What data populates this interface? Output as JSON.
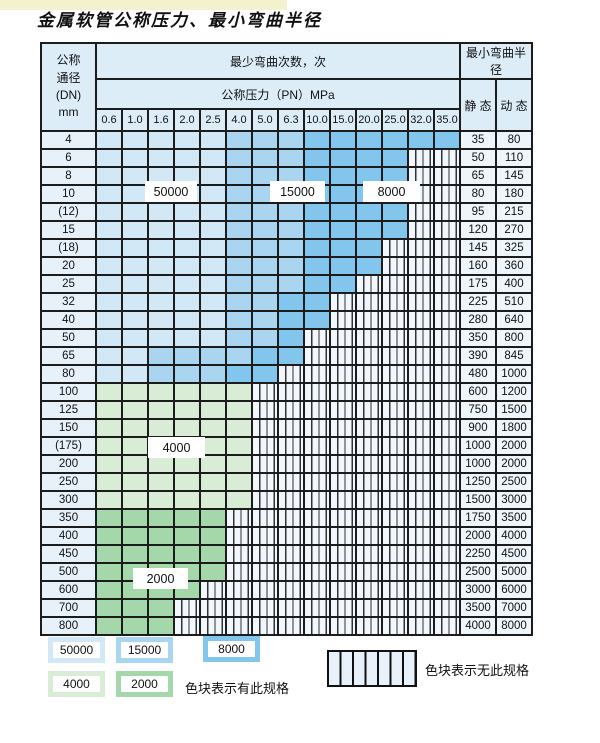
{
  "page": {
    "title": "金属软管公称压力、最小弯曲半径"
  },
  "table": {
    "corner": {
      "line1": "公称",
      "line2": "通径",
      "line3": "(DN)",
      "line4": "mm"
    },
    "bend_header": "最少弯曲次数，次",
    "radius_header": "最小弯曲半径",
    "pressure_header": "公称压力（PN）MPa",
    "static_label": "静 态",
    "dynamic_label": "动 态",
    "pressures": [
      "0.6",
      "1.0",
      "1.6",
      "2.0",
      "2.5",
      "4.0",
      "5.0",
      "6.3",
      "10.0",
      "15.0",
      "20.0",
      "25.0",
      "32.0",
      "35.0"
    ],
    "rows": [
      {
        "dn": "4",
        "static": "35",
        "dynamic": "80",
        "cells": [
          "50000",
          "50000",
          "50000",
          "50000",
          "50000",
          "15000",
          "15000",
          "15000",
          "8000",
          "8000",
          "8000",
          "8000",
          "8000",
          "8000"
        ]
      },
      {
        "dn": "6",
        "static": "50",
        "dynamic": "110",
        "cells": [
          "50000",
          "50000",
          "50000",
          "50000",
          "50000",
          "15000",
          "15000",
          "15000",
          "8000",
          "8000",
          "8000",
          "8000",
          "none",
          "none"
        ]
      },
      {
        "dn": "8",
        "static": "65",
        "dynamic": "145",
        "cells": [
          "50000",
          "50000",
          "50000",
          "50000",
          "50000",
          "15000",
          "15000",
          "15000",
          "8000",
          "8000",
          "8000",
          "8000",
          "none",
          "none"
        ]
      },
      {
        "dn": "10",
        "static": "80",
        "dynamic": "180",
        "cells": [
          "50000",
          "50000",
          "50000",
          "50000",
          "50000",
          "15000",
          "15000",
          "15000",
          "8000",
          "8000",
          "8000",
          "8000",
          "none",
          "none"
        ]
      },
      {
        "dn": "(12)",
        "static": "95",
        "dynamic": "215",
        "cells": [
          "50000",
          "50000",
          "50000",
          "50000",
          "50000",
          "15000",
          "15000",
          "15000",
          "8000",
          "8000",
          "8000",
          "8000",
          "none",
          "none"
        ]
      },
      {
        "dn": "15",
        "static": "120",
        "dynamic": "270",
        "cells": [
          "50000",
          "50000",
          "50000",
          "50000",
          "50000",
          "15000",
          "15000",
          "15000",
          "8000",
          "8000",
          "8000",
          "8000",
          "none",
          "none"
        ]
      },
      {
        "dn": "(18)",
        "static": "145",
        "dynamic": "325",
        "cells": [
          "50000",
          "50000",
          "50000",
          "50000",
          "50000",
          "15000",
          "15000",
          "15000",
          "8000",
          "8000",
          "8000",
          "none",
          "none",
          "none"
        ]
      },
      {
        "dn": "20",
        "static": "160",
        "dynamic": "360",
        "cells": [
          "50000",
          "50000",
          "50000",
          "50000",
          "50000",
          "15000",
          "15000",
          "15000",
          "8000",
          "8000",
          "8000",
          "none",
          "none",
          "none"
        ]
      },
      {
        "dn": "25",
        "static": "175",
        "dynamic": "400",
        "cells": [
          "50000",
          "50000",
          "50000",
          "50000",
          "50000",
          "15000",
          "15000",
          "15000",
          "8000",
          "8000",
          "none",
          "none",
          "none",
          "none"
        ]
      },
      {
        "dn": "32",
        "static": "225",
        "dynamic": "510",
        "cells": [
          "50000",
          "50000",
          "50000",
          "50000",
          "50000",
          "15000",
          "15000",
          "8000",
          "8000",
          "none",
          "none",
          "none",
          "none",
          "none"
        ]
      },
      {
        "dn": "40",
        "static": "280",
        "dynamic": "640",
        "cells": [
          "50000",
          "50000",
          "50000",
          "50000",
          "50000",
          "15000",
          "15000",
          "8000",
          "8000",
          "none",
          "none",
          "none",
          "none",
          "none"
        ]
      },
      {
        "dn": "50",
        "static": "350",
        "dynamic": "800",
        "cells": [
          "50000",
          "50000",
          "50000",
          "50000",
          "50000",
          "15000",
          "15000",
          "8000",
          "none",
          "none",
          "none",
          "none",
          "none",
          "none"
        ]
      },
      {
        "dn": "65",
        "static": "390",
        "dynamic": "845",
        "cells": [
          "50000",
          "50000",
          "15000",
          "15000",
          "15000",
          "15000",
          "8000",
          "8000",
          "none",
          "none",
          "none",
          "none",
          "none",
          "none"
        ]
      },
      {
        "dn": "80",
        "static": "480",
        "dynamic": "1000",
        "cells": [
          "50000",
          "50000",
          "15000",
          "15000",
          "15000",
          "8000",
          "8000",
          "none",
          "none",
          "none",
          "none",
          "none",
          "none",
          "none"
        ]
      },
      {
        "dn": "100",
        "static": "600",
        "dynamic": "1200",
        "cells": [
          "4000",
          "4000",
          "4000",
          "4000",
          "4000",
          "4000",
          "none",
          "none",
          "none",
          "none",
          "none",
          "none",
          "none",
          "none"
        ]
      },
      {
        "dn": "125",
        "static": "750",
        "dynamic": "1500",
        "cells": [
          "4000",
          "4000",
          "4000",
          "4000",
          "4000",
          "4000",
          "none",
          "none",
          "none",
          "none",
          "none",
          "none",
          "none",
          "none"
        ]
      },
      {
        "dn": "150",
        "static": "900",
        "dynamic": "1800",
        "cells": [
          "4000",
          "4000",
          "4000",
          "4000",
          "4000",
          "4000",
          "none",
          "none",
          "none",
          "none",
          "none",
          "none",
          "none",
          "none"
        ]
      },
      {
        "dn": "(175)",
        "static": "1000",
        "dynamic": "2000",
        "cells": [
          "4000",
          "4000",
          "4000",
          "4000",
          "4000",
          "4000",
          "none",
          "none",
          "none",
          "none",
          "none",
          "none",
          "none",
          "none"
        ]
      },
      {
        "dn": "200",
        "static": "1000",
        "dynamic": "2000",
        "cells": [
          "4000",
          "4000",
          "4000",
          "4000",
          "4000",
          "4000",
          "none",
          "none",
          "none",
          "none",
          "none",
          "none",
          "none",
          "none"
        ]
      },
      {
        "dn": "250",
        "static": "1250",
        "dynamic": "2500",
        "cells": [
          "4000",
          "4000",
          "4000",
          "4000",
          "4000",
          "4000",
          "none",
          "none",
          "none",
          "none",
          "none",
          "none",
          "none",
          "none"
        ]
      },
      {
        "dn": "300",
        "static": "1500",
        "dynamic": "3000",
        "cells": [
          "4000",
          "4000",
          "4000",
          "4000",
          "4000",
          "4000",
          "none",
          "none",
          "none",
          "none",
          "none",
          "none",
          "none",
          "none"
        ]
      },
      {
        "dn": "350",
        "static": "1750",
        "dynamic": "3500",
        "cells": [
          "2000",
          "2000",
          "2000",
          "2000",
          "2000",
          "none",
          "none",
          "none",
          "none",
          "none",
          "none",
          "none",
          "none",
          "none"
        ]
      },
      {
        "dn": "400",
        "static": "2000",
        "dynamic": "4000",
        "cells": [
          "2000",
          "2000",
          "2000",
          "2000",
          "2000",
          "none",
          "none",
          "none",
          "none",
          "none",
          "none",
          "none",
          "none",
          "none"
        ]
      },
      {
        "dn": "450",
        "static": "2250",
        "dynamic": "4500",
        "cells": [
          "2000",
          "2000",
          "2000",
          "2000",
          "2000",
          "none",
          "none",
          "none",
          "none",
          "none",
          "none",
          "none",
          "none",
          "none"
        ]
      },
      {
        "dn": "500",
        "static": "2500",
        "dynamic": "5000",
        "cells": [
          "2000",
          "2000",
          "2000",
          "2000",
          "2000",
          "none",
          "none",
          "none",
          "none",
          "none",
          "none",
          "none",
          "none",
          "none"
        ]
      },
      {
        "dn": "600",
        "static": "3000",
        "dynamic": "6000",
        "cells": [
          "2000",
          "2000",
          "2000",
          "2000",
          "none",
          "none",
          "none",
          "none",
          "none",
          "none",
          "none",
          "none",
          "none",
          "none"
        ]
      },
      {
        "dn": "700",
        "static": "3500",
        "dynamic": "7000",
        "cells": [
          "2000",
          "2000",
          "2000",
          "none",
          "none",
          "none",
          "none",
          "none",
          "none",
          "none",
          "none",
          "none",
          "none",
          "none"
        ]
      },
      {
        "dn": "800",
        "static": "4000",
        "dynamic": "8000",
        "cells": [
          "2000",
          "2000",
          "2000",
          "none",
          "none",
          "none",
          "none",
          "none",
          "none",
          "none",
          "none",
          "none",
          "none",
          "none"
        ]
      }
    ]
  },
  "overlays": [
    {
      "text": "50000",
      "zone": "50000"
    },
    {
      "text": "15000",
      "zone": "15000"
    },
    {
      "text": "8000",
      "zone": "8000"
    },
    {
      "text": "4000",
      "zone": "4000"
    },
    {
      "text": "2000",
      "zone": "2000"
    }
  ],
  "legend": {
    "swatches": [
      {
        "label": "50000",
        "zone": "50000"
      },
      {
        "label": "15000",
        "zone": "15000"
      },
      {
        "label": "8000",
        "zone": "8000"
      },
      {
        "label": "4000",
        "zone": "4000"
      },
      {
        "label": "2000",
        "zone": "2000"
      }
    ],
    "has_spec_text": "色块表示有此规格",
    "no_spec_text": "色块表示无此规格"
  },
  "colors": {
    "zone_50000": "#d3e8f7",
    "zone_15000": "#a9d5f1",
    "zone_8000": "#82c6ee",
    "zone_4000": "#d8ecd6",
    "zone_2000": "#a4d7aa",
    "hatch_bg": "#f1f7fc",
    "header_bg": "#dcedf8",
    "dn_bg": "#e7f1fa",
    "value_bg": "#eef5fb",
    "grid": "#1c1c1c"
  }
}
